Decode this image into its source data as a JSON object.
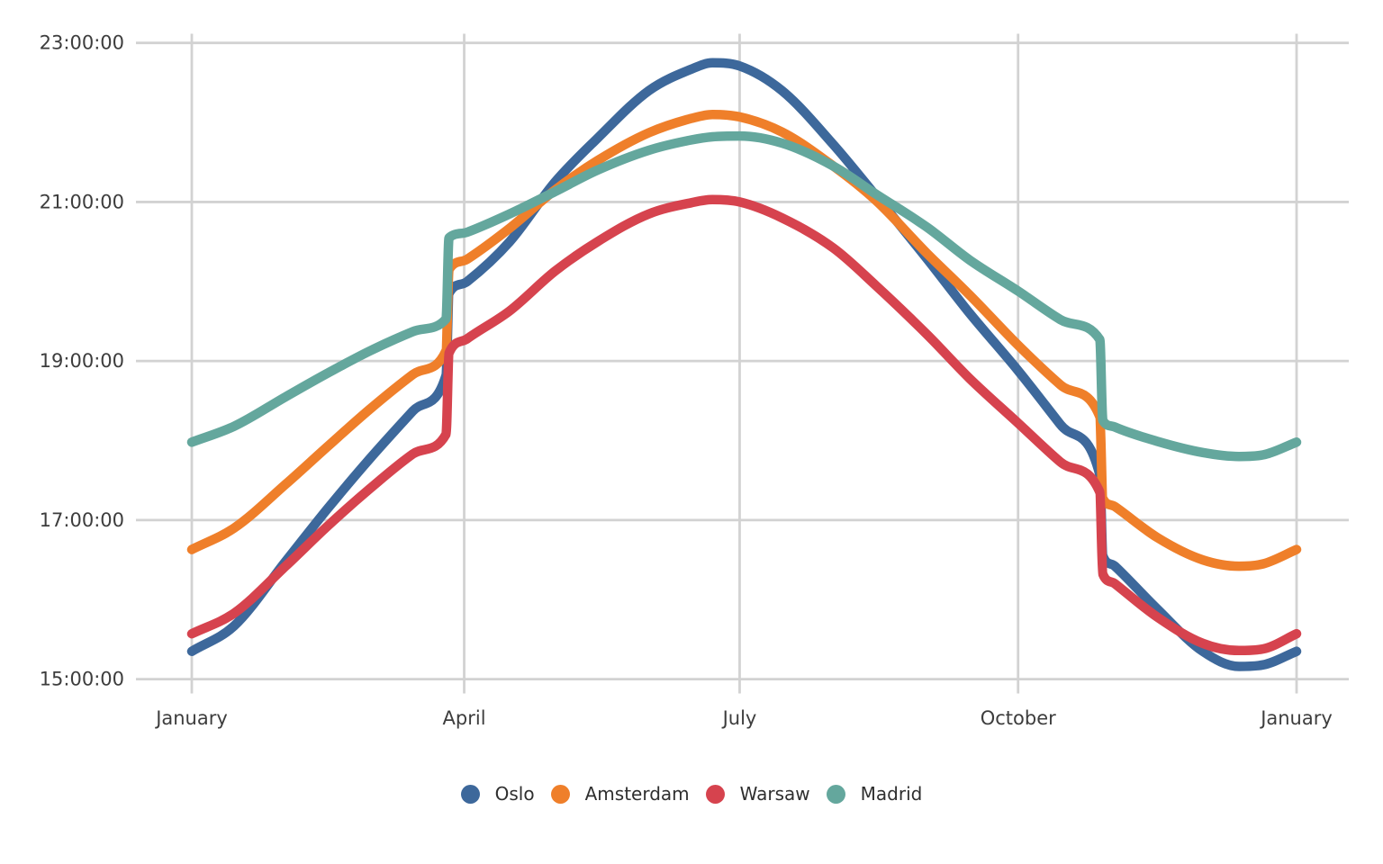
{
  "chart_data": {
    "type": "line",
    "title": "",
    "xlabel": "",
    "ylabel": "",
    "x_unit": "day_of_year (Jan 1 = 0)",
    "y_unit": "sunset time, hours (decimal, local clock time)",
    "grid": true,
    "legend_position": "bottom",
    "xlim_days": [
      0,
      365
    ],
    "ylim_hours": [
      15,
      23
    ],
    "x_ticks": [
      {
        "label": "January",
        "day": 0
      },
      {
        "label": "April",
        "day": 90
      },
      {
        "label": "July",
        "day": 181
      },
      {
        "label": "October",
        "day": 273
      },
      {
        "label": "January",
        "day": 365
      }
    ],
    "y_ticks": [
      {
        "label": "15:00:00",
        "hour": 15
      },
      {
        "label": "17:00:00",
        "hour": 17
      },
      {
        "label": "19:00:00",
        "hour": 19
      },
      {
        "label": "21:00:00",
        "hour": 21
      },
      {
        "label": "23:00:00",
        "hour": 23
      }
    ],
    "series": [
      {
        "name": "Oslo",
        "color": "#3d689b",
        "points": [
          [
            0,
            15.35
          ],
          [
            14,
            15.67
          ],
          [
            31,
            16.48
          ],
          [
            45,
            17.15
          ],
          [
            59,
            17.78
          ],
          [
            73,
            18.37
          ],
          [
            84,
            18.82
          ],
          [
            85,
            19.85
          ],
          [
            91,
            20.0
          ],
          [
            105,
            20.5
          ],
          [
            120,
            21.25
          ],
          [
            134,
            21.8
          ],
          [
            151,
            22.4
          ],
          [
            165,
            22.67
          ],
          [
            172,
            22.75
          ],
          [
            181,
            22.71
          ],
          [
            195,
            22.4
          ],
          [
            212,
            21.72
          ],
          [
            226,
            21.08
          ],
          [
            243,
            20.28
          ],
          [
            257,
            19.6
          ],
          [
            273,
            18.88
          ],
          [
            287,
            18.2
          ],
          [
            300,
            17.57
          ],
          [
            301,
            16.55
          ],
          [
            305,
            16.42
          ],
          [
            319,
            15.88
          ],
          [
            334,
            15.35
          ],
          [
            346,
            15.16
          ],
          [
            354,
            15.18
          ],
          [
            365,
            15.35
          ]
        ]
      },
      {
        "name": "Amsterdam",
        "color": "#ef7f2a",
        "points": [
          [
            0,
            16.63
          ],
          [
            14,
            16.9
          ],
          [
            31,
            17.45
          ],
          [
            45,
            17.93
          ],
          [
            59,
            18.4
          ],
          [
            73,
            18.83
          ],
          [
            84,
            19.13
          ],
          [
            85,
            20.15
          ],
          [
            91,
            20.28
          ],
          [
            105,
            20.67
          ],
          [
            120,
            21.15
          ],
          [
            134,
            21.52
          ],
          [
            151,
            21.87
          ],
          [
            165,
            22.05
          ],
          [
            172,
            22.1
          ],
          [
            181,
            22.07
          ],
          [
            195,
            21.88
          ],
          [
            212,
            21.45
          ],
          [
            226,
            21.02
          ],
          [
            243,
            20.35
          ],
          [
            257,
            19.83
          ],
          [
            273,
            19.2
          ],
          [
            287,
            18.7
          ],
          [
            300,
            18.3
          ],
          [
            301,
            17.27
          ],
          [
            305,
            17.17
          ],
          [
            319,
            16.78
          ],
          [
            334,
            16.5
          ],
          [
            346,
            16.42
          ],
          [
            354,
            16.45
          ],
          [
            365,
            16.63
          ]
        ]
      },
      {
        "name": "Warsaw",
        "color": "#d6434e",
        "points": [
          [
            0,
            15.57
          ],
          [
            14,
            15.83
          ],
          [
            31,
            16.42
          ],
          [
            45,
            16.93
          ],
          [
            59,
            17.4
          ],
          [
            73,
            17.83
          ],
          [
            84,
            18.08
          ],
          [
            85,
            19.1
          ],
          [
            91,
            19.28
          ],
          [
            105,
            19.63
          ],
          [
            120,
            20.13
          ],
          [
            134,
            20.5
          ],
          [
            151,
            20.85
          ],
          [
            165,
            20.99
          ],
          [
            172,
            21.03
          ],
          [
            181,
            21.0
          ],
          [
            195,
            20.8
          ],
          [
            212,
            20.42
          ],
          [
            226,
            19.95
          ],
          [
            243,
            19.33
          ],
          [
            257,
            18.78
          ],
          [
            273,
            18.22
          ],
          [
            287,
            17.73
          ],
          [
            300,
            17.35
          ],
          [
            301,
            16.32
          ],
          [
            305,
            16.2
          ],
          [
            319,
            15.78
          ],
          [
            334,
            15.45
          ],
          [
            346,
            15.36
          ],
          [
            354,
            15.38
          ],
          [
            365,
            15.57
          ]
        ]
      },
      {
        "name": "Madrid",
        "color": "#64a79d",
        "points": [
          [
            0,
            17.98
          ],
          [
            14,
            18.18
          ],
          [
            31,
            18.55
          ],
          [
            45,
            18.85
          ],
          [
            59,
            19.13
          ],
          [
            73,
            19.37
          ],
          [
            84,
            19.53
          ],
          [
            85,
            20.55
          ],
          [
            91,
            20.62
          ],
          [
            105,
            20.85
          ],
          [
            120,
            21.13
          ],
          [
            134,
            21.4
          ],
          [
            151,
            21.65
          ],
          [
            165,
            21.78
          ],
          [
            172,
            21.82
          ],
          [
            181,
            21.83
          ],
          [
            195,
            21.74
          ],
          [
            212,
            21.45
          ],
          [
            226,
            21.1
          ],
          [
            243,
            20.68
          ],
          [
            257,
            20.27
          ],
          [
            273,
            19.88
          ],
          [
            287,
            19.52
          ],
          [
            300,
            19.27
          ],
          [
            301,
            18.25
          ],
          [
            305,
            18.17
          ],
          [
            319,
            17.99
          ],
          [
            334,
            17.85
          ],
          [
            346,
            17.8
          ],
          [
            354,
            17.82
          ],
          [
            365,
            17.98
          ]
        ]
      }
    ],
    "legend": [
      "Oslo",
      "Amsterdam",
      "Warsaw",
      "Madrid"
    ]
  },
  "colors": {
    "grid": "#d2d2d2",
    "tick_text": "#3d3d3d",
    "background": "#ffffff"
  }
}
